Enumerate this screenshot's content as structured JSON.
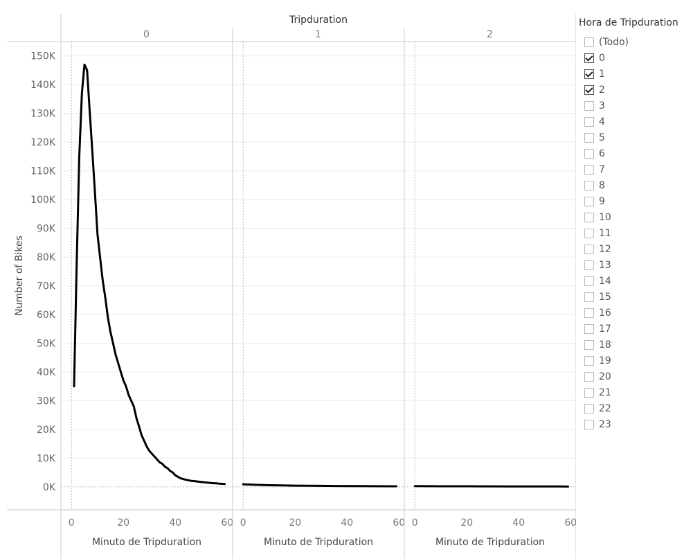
{
  "chart_data": {
    "type": "line",
    "facet_title": "Tripduration",
    "facets": [
      "0",
      "1",
      "2"
    ],
    "xlabel": "Minuto de Tripduration",
    "ylabel": "Number of Bikes",
    "xlim": [
      -3,
      61
    ],
    "ylim": [
      -8000,
      155000
    ],
    "x_ticks": [
      "0",
      "20",
      "40",
      "60"
    ],
    "y_ticks": [
      "0K",
      "10K",
      "20K",
      "30K",
      "40K",
      "50K",
      "60K",
      "70K",
      "80K",
      "90K",
      "100K",
      "110K",
      "120K",
      "130K",
      "140K",
      "150K"
    ],
    "grid": true,
    "series": [
      {
        "facet": "0",
        "x": [
          1,
          2,
          3,
          4,
          5,
          6,
          7,
          8,
          9,
          10,
          11,
          12,
          13,
          14,
          15,
          16,
          17,
          18,
          19,
          20,
          21,
          22,
          23,
          24,
          25,
          26,
          27,
          28,
          29,
          30,
          31,
          32,
          33,
          34,
          35,
          36,
          37,
          38,
          39,
          40,
          41,
          42,
          43,
          44,
          45,
          46,
          47,
          48,
          49,
          50,
          51,
          52,
          53,
          54,
          55,
          56,
          57,
          58,
          59
        ],
        "y": [
          35000,
          78000,
          115000,
          137000,
          147000,
          145000,
          131000,
          117000,
          103000,
          88000,
          80000,
          72000,
          66000,
          59000,
          54000,
          50000,
          46000,
          43000,
          40000,
          37000,
          35000,
          32000,
          30000,
          28000,
          24000,
          21000,
          18000,
          16000,
          14000,
          12500,
          11500,
          10500,
          9500,
          8500,
          8000,
          7000,
          6500,
          5500,
          5000,
          4000,
          3500,
          3000,
          2700,
          2500,
          2300,
          2100,
          2000,
          1900,
          1800,
          1700,
          1600,
          1500,
          1400,
          1300,
          1250,
          1200,
          1100,
          1050,
          1000
        ]
      },
      {
        "facet": "1",
        "x": [
          0,
          5,
          10,
          15,
          20,
          25,
          30,
          35,
          40,
          45,
          50,
          55,
          59
        ],
        "y": [
          900,
          700,
          550,
          480,
          420,
          380,
          340,
          300,
          280,
          250,
          230,
          210,
          200
        ]
      },
      {
        "facet": "2",
        "x": [
          0,
          5,
          10,
          15,
          20,
          25,
          30,
          35,
          40,
          45,
          50,
          55,
          59
        ],
        "y": [
          250,
          230,
          210,
          200,
          190,
          180,
          170,
          160,
          150,
          140,
          130,
          120,
          110
        ]
      }
    ]
  },
  "legend": {
    "title": "Hora de Tripduration",
    "items": [
      {
        "label": "(Todo)",
        "checked": false
      },
      {
        "label": "0",
        "checked": true
      },
      {
        "label": "1",
        "checked": true
      },
      {
        "label": "2",
        "checked": true
      },
      {
        "label": "3",
        "checked": false
      },
      {
        "label": "4",
        "checked": false
      },
      {
        "label": "5",
        "checked": false
      },
      {
        "label": "6",
        "checked": false
      },
      {
        "label": "7",
        "checked": false
      },
      {
        "label": "8",
        "checked": false
      },
      {
        "label": "9",
        "checked": false
      },
      {
        "label": "10",
        "checked": false
      },
      {
        "label": "11",
        "checked": false
      },
      {
        "label": "12",
        "checked": false
      },
      {
        "label": "13",
        "checked": false
      },
      {
        "label": "14",
        "checked": false
      },
      {
        "label": "15",
        "checked": false
      },
      {
        "label": "16",
        "checked": false
      },
      {
        "label": "17",
        "checked": false
      },
      {
        "label": "18",
        "checked": false
      },
      {
        "label": "19",
        "checked": false
      },
      {
        "label": "20",
        "checked": false
      },
      {
        "label": "21",
        "checked": false
      },
      {
        "label": "22",
        "checked": false
      },
      {
        "label": "23",
        "checked": false
      }
    ]
  },
  "colors": {
    "line": "#000000",
    "grid": "#ececec",
    "axis": "#c8c8c8"
  }
}
